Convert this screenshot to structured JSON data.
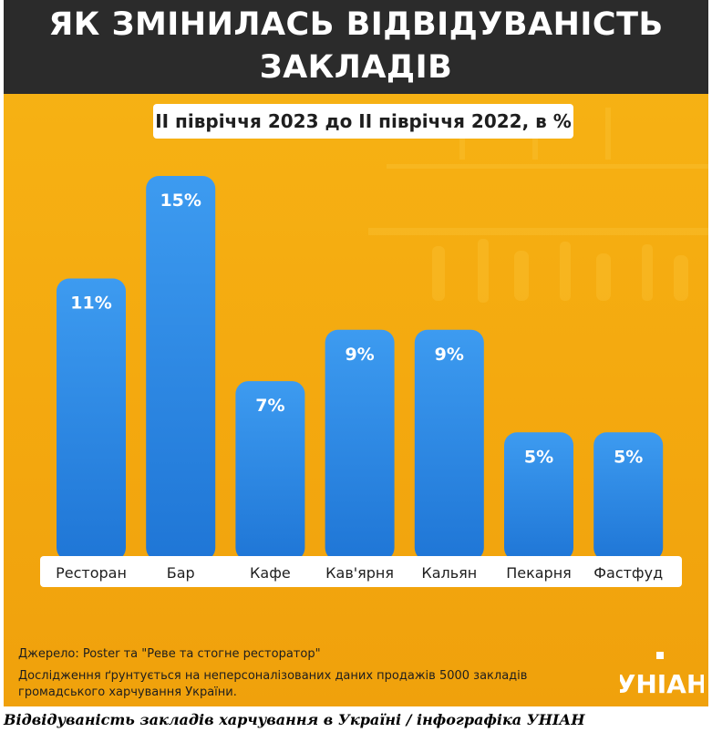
{
  "header": {
    "title_line1": "ЯК ЗМІНИЛАСЬ ВІДВІДУВАНІСТЬ",
    "title_line2": "ЗАКЛАДІВ"
  },
  "chart_data": {
    "type": "bar",
    "subtitle": "II півріччя 2023 до II півріччя 2022, в %",
    "categories": [
      "Ресторан",
      "Бар",
      "Кафе",
      "Кав'ярня",
      "Кальян",
      "Пекарня",
      "Фастфуд"
    ],
    "values": [
      11,
      15,
      7,
      9,
      9,
      5,
      5
    ],
    "value_labels": [
      "11%",
      "15%",
      "7%",
      "9%",
      "9%",
      "5%",
      "5%"
    ],
    "unit": "%",
    "ylim": [
      0,
      15
    ],
    "grid": false,
    "legend": "none",
    "bar_color": "#2f8de8"
  },
  "footer": {
    "source": "Джерело: Poster та \"Реве та стогне ресторатор\"",
    "note": "Дослідження ґрунтується на неперсоналізованих даних продажів 5000 закладів громадського харчування України."
  },
  "logo": {
    "text": "УНІАН"
  },
  "caption": "Відвідуваність закладів харчування в Україні / інфографіка УНІАН"
}
